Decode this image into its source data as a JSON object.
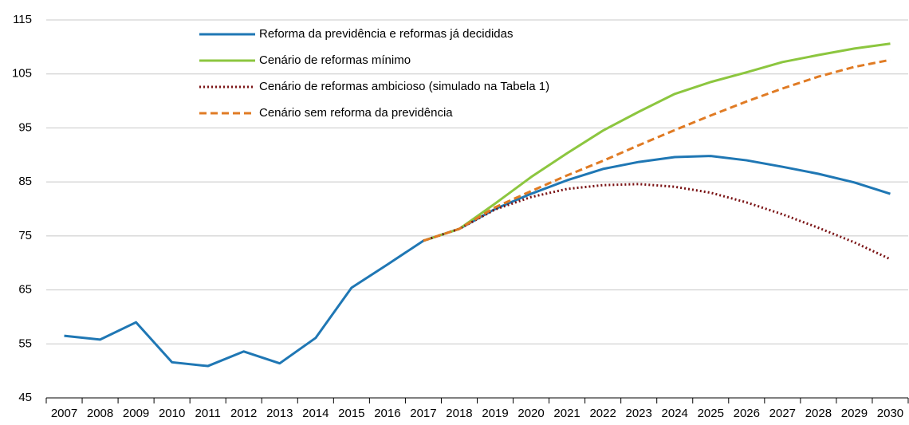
{
  "chart_data": {
    "type": "line",
    "categories": [
      "2007",
      "2008",
      "2009",
      "2010",
      "2011",
      "2012",
      "2013",
      "2014",
      "2015",
      "2016",
      "2017",
      "2018",
      "2019",
      "2020",
      "2021",
      "2022",
      "2023",
      "2024",
      "2025",
      "2026",
      "2027",
      "2028",
      "2029",
      "2030"
    ],
    "series": [
      {
        "name": "Reforma da previdência e reformas já decididas",
        "color": "#1f77b4",
        "dash": "solid",
        "values": [
          56.5,
          55.8,
          59.0,
          51.6,
          50.9,
          53.6,
          51.4,
          56.1,
          65.4,
          69.7,
          74.1,
          76.3,
          80.0,
          82.8,
          85.3,
          87.4,
          88.7,
          89.6,
          89.8,
          89.0,
          87.8,
          86.5,
          84.9,
          82.8
        ]
      },
      {
        "name": "Cenário de reformas mínimo",
        "color": "#8cc63f",
        "dash": "solid",
        "values": [
          null,
          null,
          null,
          null,
          null,
          null,
          null,
          null,
          null,
          null,
          74.1,
          76.3,
          81.0,
          85.9,
          90.3,
          94.5,
          98.0,
          101.3,
          103.5,
          105.3,
          107.2,
          108.5,
          109.7,
          110.6
        ]
      },
      {
        "name": "Cenário de reformas ambicioso (simulado na Tabela 1)",
        "color": "#7b1416",
        "dash": "dotted",
        "values": [
          null,
          null,
          null,
          null,
          null,
          null,
          null,
          null,
          null,
          null,
          74.1,
          76.3,
          79.9,
          82.2,
          83.7,
          84.4,
          84.6,
          84.1,
          83.0,
          81.2,
          79.0,
          76.5,
          73.8,
          70.7
        ]
      },
      {
        "name": "Cenário sem reforma da previdência",
        "color": "#e07b24",
        "dash": "dashed",
        "values": [
          null,
          null,
          null,
          null,
          null,
          null,
          null,
          null,
          null,
          null,
          74.1,
          76.3,
          80.3,
          83.3,
          86.2,
          88.9,
          91.8,
          94.6,
          97.3,
          99.9,
          102.3,
          104.5,
          106.3,
          107.6
        ]
      }
    ],
    "ylim": [
      45,
      115
    ],
    "yticks": [
      45,
      55,
      65,
      75,
      85,
      95,
      105,
      115
    ],
    "grid": true,
    "legend": "top-left"
  }
}
